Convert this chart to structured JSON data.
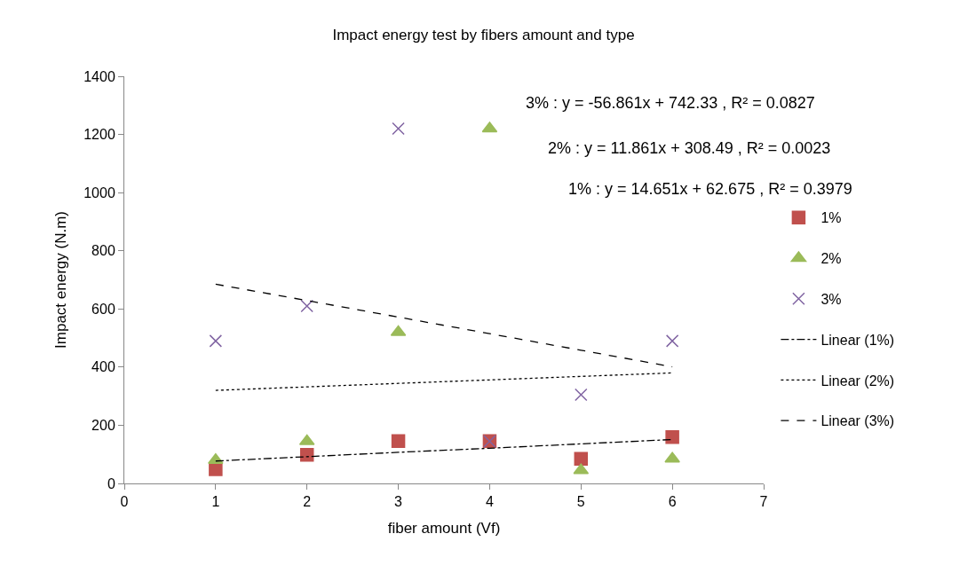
{
  "chart_data": {
    "type": "scatter",
    "title": "Impact energy test by fibers amount and type",
    "xlabel": "fiber amount (Vf)",
    "ylabel": "Impact energy (N.m)",
    "x": [
      1,
      2,
      3,
      4,
      5,
      6
    ],
    "series": [
      {
        "name": "1%",
        "color": "#c0504d",
        "marker": "square",
        "values": [
          49,
          98,
          146,
          146,
          85,
          159
        ]
      },
      {
        "name": "2%",
        "color": "#9bbb59",
        "marker": "triangle",
        "values": [
          80,
          145,
          520,
          1220,
          45,
          85
        ]
      },
      {
        "name": "3%",
        "color": "#8064a2",
        "marker": "cross",
        "values": [
          490,
          610,
          1220,
          145,
          305,
          490
        ]
      },
      {
        "name": "Linear (1%)",
        "type": "line",
        "color": "#000000",
        "line_style": "dashdot",
        "values": [
          77,
          92,
          107,
          121,
          136,
          151
        ]
      },
      {
        "name": "Linear (2%)",
        "type": "line",
        "color": "#000000",
        "line_style": "dotted",
        "values": [
          320,
          332,
          344,
          356,
          368,
          380
        ]
      },
      {
        "name": "Linear (3%)",
        "type": "line",
        "color": "#000000",
        "line_style": "dashed",
        "values": [
          685,
          629,
          572,
          515,
          458,
          401
        ]
      }
    ],
    "xlim": [
      0,
      7
    ],
    "xticks": [
      0,
      1,
      2,
      3,
      4,
      5,
      6,
      7
    ],
    "ylim": [
      0,
      1400
    ],
    "yticks": [
      0,
      200,
      400,
      600,
      800,
      1000,
      1200,
      1400
    ],
    "legend": "right",
    "annotations": [
      "3% : y = -56.861x + 742.33 , R² = 0.0827",
      "2% : y = 11.861x + 308.49 , R² = 0.0023",
      "1% : y = 14.651x + 62.675 , R² = 0.3979"
    ]
  }
}
